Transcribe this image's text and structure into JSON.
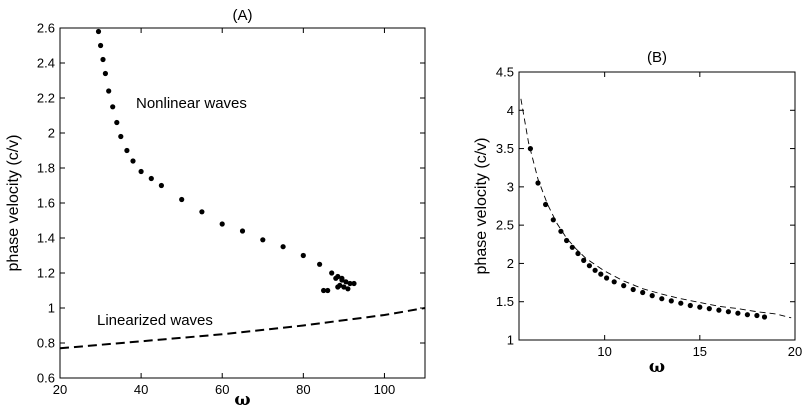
{
  "chart_data": [
    {
      "type": "scatter",
      "title": "(A)",
      "xlabel": "ω",
      "ylabel": "phase velocity (c/v)",
      "xlim": [
        20,
        110
      ],
      "ylim": [
        0.6,
        2.6
      ],
      "xticks": [
        "20",
        "40",
        "60",
        "80",
        "100"
      ],
      "yticks": [
        "0.6",
        "0.8",
        "1",
        "1.2",
        "1.4",
        "1.6",
        "1.8",
        "2",
        "2.2",
        "2.4",
        "2.6"
      ],
      "grid": false,
      "annotations": [
        "Nonlinear waves",
        "Linearized waves"
      ],
      "series": [
        {
          "style": "markers",
          "x": [
            29.5,
            30,
            30.6,
            31.2,
            32,
            33,
            34,
            35,
            36.5,
            38,
            40,
            42.5,
            45,
            50,
            55,
            60,
            65,
            70,
            75,
            80,
            84,
            87,
            88.5,
            89.5,
            90.5,
            91.5,
            92.5,
            89,
            88.5,
            90,
            91,
            89.5,
            88,
            86,
            85
          ],
          "y": [
            2.58,
            2.5,
            2.42,
            2.34,
            2.24,
            2.15,
            2.06,
            1.98,
            1.9,
            1.84,
            1.78,
            1.74,
            1.7,
            1.62,
            1.55,
            1.48,
            1.44,
            1.39,
            1.35,
            1.3,
            1.25,
            1.2,
            1.18,
            1.16,
            1.15,
            1.14,
            1.14,
            1.13,
            1.12,
            1.12,
            1.11,
            1.17,
            1.17,
            1.1,
            1.1
          ]
        },
        {
          "style": "dashed",
          "x": [
            20,
            40,
            60,
            80,
            100,
            110
          ],
          "y": [
            0.77,
            0.81,
            0.85,
            0.9,
            0.96,
            1.0
          ]
        }
      ]
    },
    {
      "type": "scatter",
      "title": "(B)",
      "xlabel": "ω",
      "ylabel": "phase velocity (c/v)",
      "xlim": [
        5.5,
        20
      ],
      "ylim": [
        1,
        4.5
      ],
      "xticks": [
        "10",
        "15",
        "20"
      ],
      "yticks": [
        "1",
        "1.5",
        "2",
        "2.5",
        "3",
        "3.5",
        "4",
        "4.5"
      ],
      "grid": false,
      "series": [
        {
          "style": "markers",
          "x": [
            6.1,
            6.5,
            6.9,
            7.3,
            7.7,
            8.0,
            8.3,
            8.6,
            8.9,
            9.2,
            9.5,
            9.8,
            10.1,
            10.5,
            11,
            11.5,
            12,
            12.5,
            13,
            13.5,
            14,
            14.5,
            15,
            15.5,
            16,
            16.5,
            17,
            17.5,
            18,
            18.4
          ],
          "y": [
            3.5,
            3.05,
            2.77,
            2.57,
            2.42,
            2.3,
            2.21,
            2.13,
            2.04,
            1.97,
            1.91,
            1.86,
            1.81,
            1.76,
            1.71,
            1.66,
            1.62,
            1.58,
            1.54,
            1.51,
            1.48,
            1.45,
            1.43,
            1.41,
            1.39,
            1.37,
            1.35,
            1.33,
            1.32,
            1.3
          ]
        },
        {
          "style": "dashed-thin",
          "x": [
            5.6,
            6,
            6.5,
            7,
            7.5,
            8,
            8.5,
            9,
            10,
            11,
            12,
            13,
            14,
            15,
            16,
            17,
            18,
            19,
            19.8
          ],
          "y": [
            4.15,
            3.58,
            3.1,
            2.77,
            2.52,
            2.33,
            2.19,
            2.07,
            1.9,
            1.77,
            1.67,
            1.6,
            1.54,
            1.49,
            1.44,
            1.41,
            1.37,
            1.34,
            1.29
          ]
        }
      ]
    }
  ]
}
